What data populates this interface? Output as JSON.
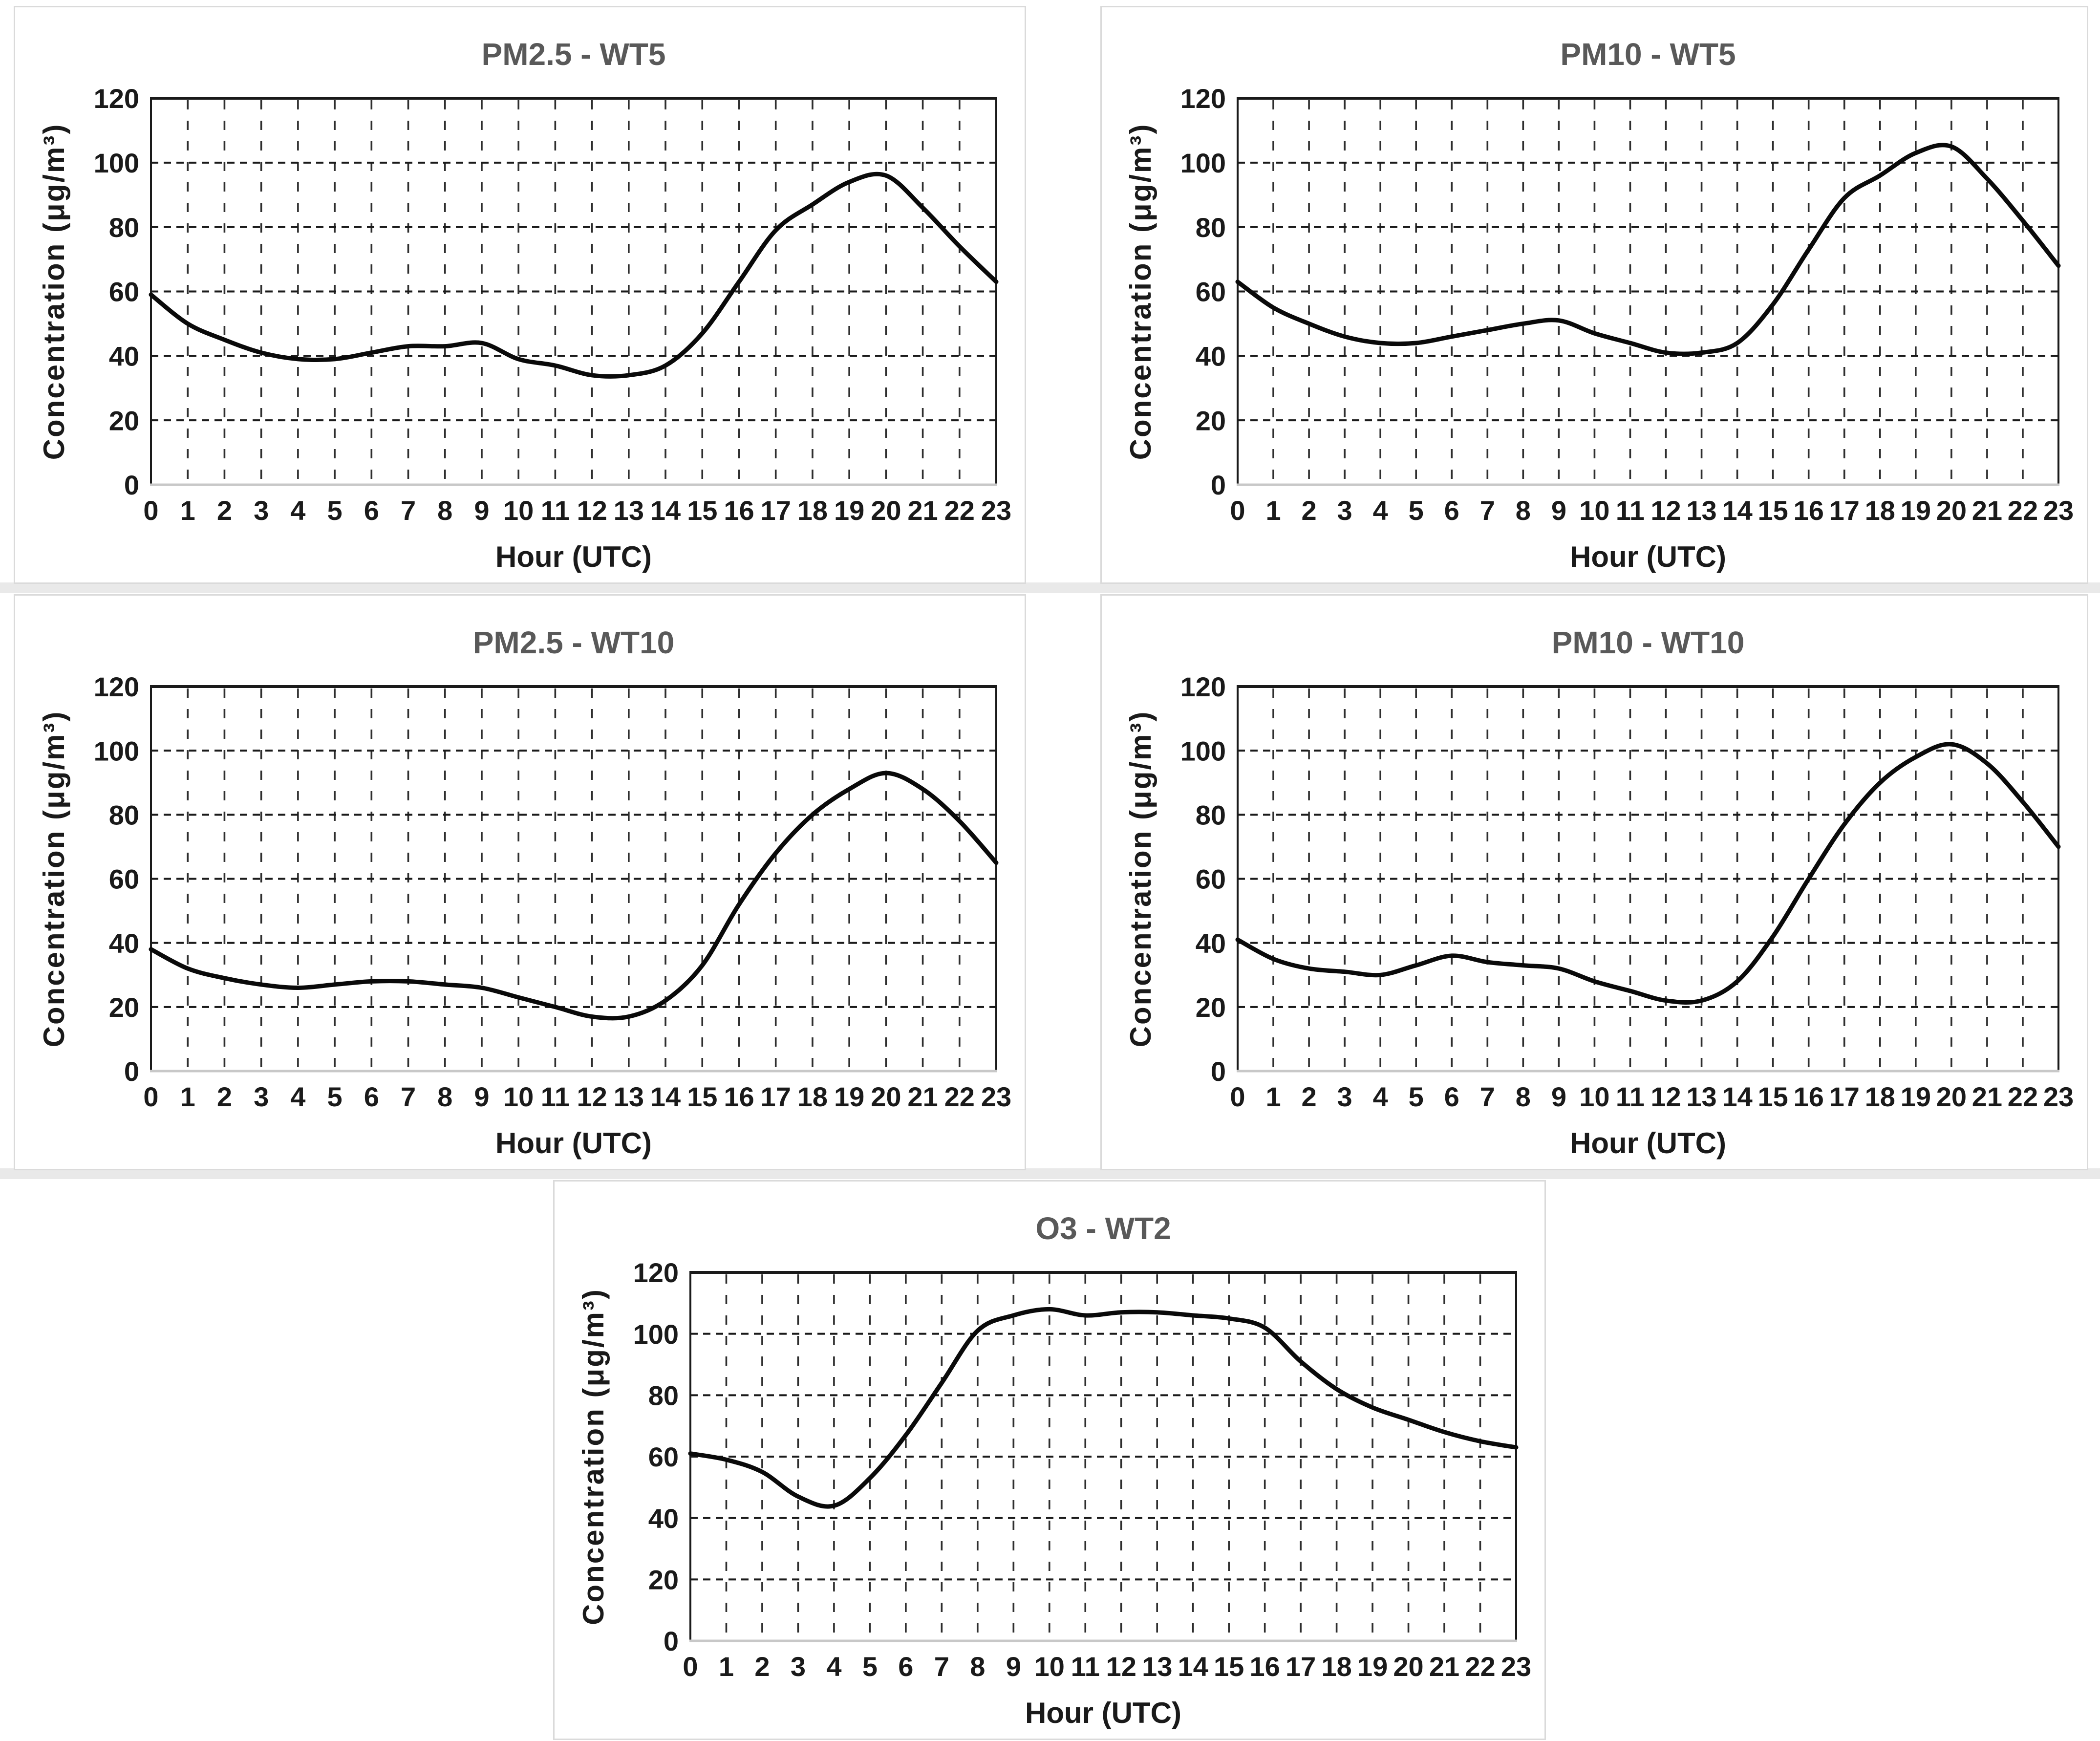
{
  "page": {
    "background": "#ffffff",
    "panel_border_color": "#dadada",
    "row_separator_color": "#e9e9e9",
    "grid_color": "#2e2e2e",
    "axis_color": "#1a1a1a",
    "baseline_color": "#c8c8c8",
    "series_color": "#0a0a0a",
    "title_color": "#595959"
  },
  "chart_data": [
    {
      "id": "pm25-wt5",
      "type": "line",
      "title": "PM2.5 - WT5",
      "xlabel": "Hour (UTC)",
      "ylabel": "Concentration (μg/m³)",
      "x": [
        0,
        1,
        2,
        3,
        4,
        5,
        6,
        7,
        8,
        9,
        10,
        11,
        12,
        13,
        14,
        15,
        16,
        17,
        18,
        19,
        20,
        21,
        22,
        23
      ],
      "values": [
        59,
        50,
        45,
        41,
        39,
        39,
        41,
        43,
        43,
        44,
        39,
        37,
        34,
        34,
        37,
        47,
        63,
        79,
        87,
        94,
        96,
        86,
        74,
        63
      ],
      "ylim": [
        0,
        120
      ],
      "yticks": [
        0,
        20,
        40,
        60,
        80,
        100,
        120
      ],
      "grid": "dashed",
      "legend": "none"
    },
    {
      "id": "pm10-wt5",
      "type": "line",
      "title": "PM10 - WT5",
      "xlabel": "Hour (UTC)",
      "ylabel": "Concentration (μg/m³)",
      "x": [
        0,
        1,
        2,
        3,
        4,
        5,
        6,
        7,
        8,
        9,
        10,
        11,
        12,
        13,
        14,
        15,
        16,
        17,
        18,
        19,
        20,
        21,
        22,
        23
      ],
      "values": [
        63,
        55,
        50,
        46,
        44,
        44,
        46,
        48,
        50,
        51,
        47,
        44,
        41,
        41,
        44,
        56,
        73,
        89,
        96,
        103,
        105,
        95,
        82,
        68
      ],
      "ylim": [
        0,
        120
      ],
      "yticks": [
        0,
        20,
        40,
        60,
        80,
        100,
        120
      ],
      "grid": "dashed",
      "legend": "none"
    },
    {
      "id": "pm25-wt10",
      "type": "line",
      "title": "PM2.5 - WT10",
      "xlabel": "Hour (UTC)",
      "ylabel": "Concentration (μg/m³)",
      "x": [
        0,
        1,
        2,
        3,
        4,
        5,
        6,
        7,
        8,
        9,
        10,
        11,
        12,
        13,
        14,
        15,
        16,
        17,
        18,
        19,
        20,
        21,
        22,
        23
      ],
      "values": [
        38,
        32,
        29,
        27,
        26,
        27,
        28,
        28,
        27,
        26,
        23,
        20,
        17,
        17,
        22,
        33,
        52,
        68,
        80,
        88,
        93,
        88,
        78,
        65
      ],
      "ylim": [
        0,
        120
      ],
      "yticks": [
        0,
        20,
        40,
        60,
        80,
        100,
        120
      ],
      "grid": "dashed",
      "legend": "none"
    },
    {
      "id": "pm10-wt10",
      "type": "line",
      "title": "PM10 - WT10",
      "xlabel": "Hour (UTC)",
      "ylabel": "Concentration (μg/m³)",
      "x": [
        0,
        1,
        2,
        3,
        4,
        5,
        6,
        7,
        8,
        9,
        10,
        11,
        12,
        13,
        14,
        15,
        16,
        17,
        18,
        19,
        20,
        21,
        22,
        23
      ],
      "values": [
        41,
        35,
        32,
        31,
        30,
        33,
        36,
        34,
        33,
        32,
        28,
        25,
        22,
        22,
        28,
        42,
        60,
        77,
        90,
        98,
        102,
        96,
        84,
        70
      ],
      "ylim": [
        0,
        120
      ],
      "yticks": [
        0,
        20,
        40,
        60,
        80,
        100,
        120
      ],
      "grid": "dashed",
      "legend": "none"
    },
    {
      "id": "o3-wt2",
      "type": "line",
      "title": "O3 - WT2",
      "xlabel": "Hour (UTC)",
      "ylabel": "Concentration (μg/m³)",
      "x": [
        0,
        1,
        2,
        3,
        4,
        5,
        6,
        7,
        8,
        9,
        10,
        11,
        12,
        13,
        14,
        15,
        16,
        17,
        18,
        19,
        20,
        21,
        22,
        23
      ],
      "values": [
        61,
        59,
        55,
        47,
        44,
        53,
        67,
        84,
        101,
        106,
        108,
        106,
        107,
        107,
        106,
        105,
        102,
        91,
        82,
        76,
        72,
        68,
        65,
        63
      ],
      "ylim": [
        0,
        120
      ],
      "yticks": [
        0,
        20,
        40,
        60,
        80,
        100,
        120
      ],
      "grid": "dashed",
      "legend": "none"
    }
  ]
}
